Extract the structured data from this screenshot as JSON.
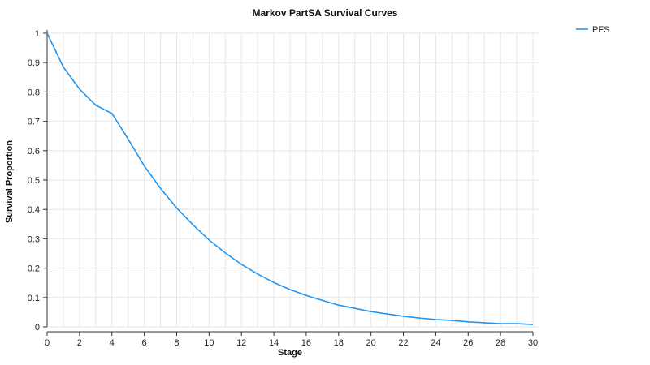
{
  "chart_data": {
    "type": "line",
    "title": "Markov PartSA Survival Curves",
    "xlabel": "Stage",
    "ylabel": "Survival Proportion",
    "xlim": [
      0,
      30
    ],
    "ylim": [
      0,
      1
    ],
    "xticks": [
      0,
      2,
      4,
      6,
      8,
      10,
      12,
      14,
      16,
      18,
      20,
      22,
      24,
      26,
      28,
      30
    ],
    "xtick_labels": [
      "0",
      "2",
      "4",
      "6",
      "8",
      "10",
      "12",
      "14",
      "16",
      "18",
      "20",
      "22",
      "24",
      "26",
      "28",
      "30"
    ],
    "yticks": [
      0,
      0.1,
      0.2,
      0.3,
      0.4,
      0.5,
      0.6,
      0.7,
      0.8,
      0.9,
      1
    ],
    "ytick_labels": [
      "0",
      "0.1",
      "0.2",
      "0.3",
      "0.4",
      "0.5",
      "0.6",
      "0.7",
      "0.8",
      "0.9",
      "1"
    ],
    "grid": true,
    "legend_position": "top-right outside",
    "series": [
      {
        "name": "PFS",
        "color": "#2196f3",
        "x": [
          0,
          1,
          2,
          3,
          4,
          5,
          6,
          7,
          8,
          9,
          10,
          11,
          12,
          13,
          14,
          15,
          16,
          17,
          18,
          19,
          20,
          21,
          22,
          23,
          24,
          25,
          26,
          27,
          28,
          29,
          30
        ],
        "y": [
          1.0,
          0.885,
          0.81,
          0.755,
          0.727,
          0.64,
          0.548,
          0.472,
          0.405,
          0.348,
          0.296,
          0.252,
          0.213,
          0.18,
          0.151,
          0.127,
          0.107,
          0.09,
          0.074,
          0.063,
          0.052,
          0.044,
          0.036,
          0.03,
          0.025,
          0.022,
          0.017,
          0.014,
          0.011,
          0.011,
          0.008
        ]
      }
    ]
  }
}
